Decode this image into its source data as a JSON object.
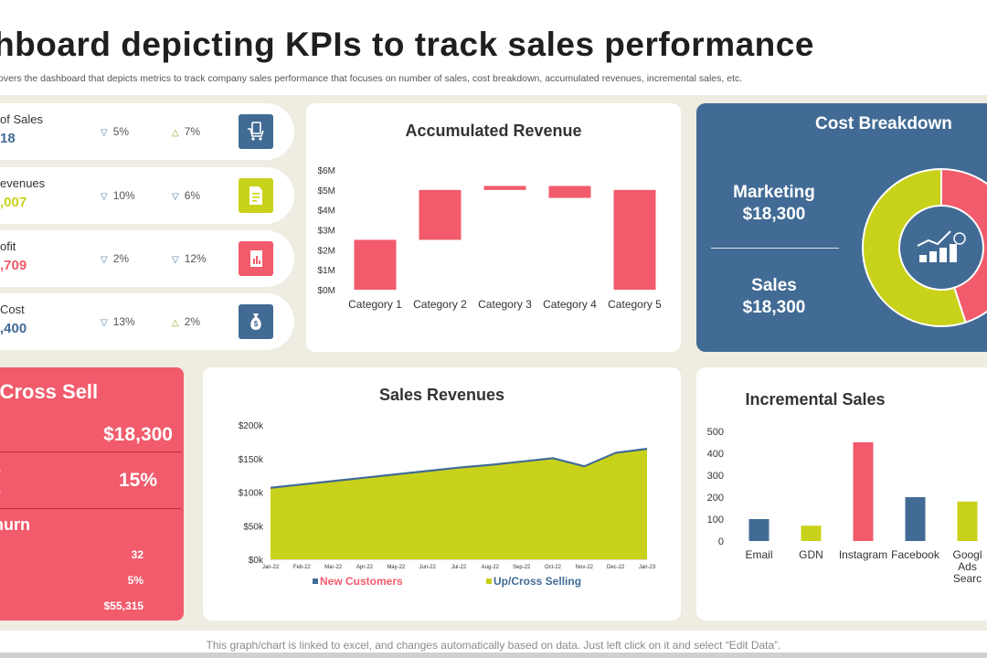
{
  "header": {
    "title": "shboard depicting KPIs to track sales performance",
    "subtitle": "overs the dashboard that depicts metrics to track company sales performance that focuses on number of sales, cost breakdown, accumulated revenues, incremental sales, etc."
  },
  "kpis": [
    {
      "label": "of Sales",
      "value": "18",
      "value_color": "#416b94",
      "change1": "5%",
      "change1_dir": "down",
      "change2": "7%",
      "change2_dir": "up",
      "icon": "cart-icon",
      "icon_color": "#416b94"
    },
    {
      "label": "evenues",
      "value": ",007",
      "value_color": "#c9d21a",
      "change1": "10%",
      "change1_dir": "down",
      "change2": "6%",
      "change2_dir": "down",
      "icon": "document-icon",
      "icon_color": "#c9d21a"
    },
    {
      "label": "ofit",
      "value": ",709",
      "value_color": "#f15b6c",
      "change1": "2%",
      "change1_dir": "down",
      "change2": "12%",
      "change2_dir": "down",
      "icon": "report-icon",
      "icon_color": "#f15b6c"
    },
    {
      "label": "Cost",
      "value": ",400",
      "value_color": "#416b94",
      "change1": "13%",
      "change1_dir": "down",
      "change2": "2%",
      "change2_dir": "up",
      "icon": "money-bag-icon",
      "icon_color": "#416b94"
    }
  ],
  "upcross": {
    "title": "p/Cross Sell",
    "value1": "$18,300",
    "label2_line1": "ge",
    "label2_line2": "ue",
    "pct": "15%",
    "label3": "Churn",
    "val_a": "32",
    "val_b": "5%",
    "val_c": "$55,315"
  },
  "accumulated_revenue": {
    "title": "Accumulated Revenue",
    "chart_data": {
      "type": "bar",
      "subtype": "waterfall",
      "categories": [
        "Category 1",
        "Category 2",
        "Category 3",
        "Category 4",
        "Category 5"
      ],
      "ranges": [
        [
          0,
          2.5
        ],
        [
          2.5,
          5.0
        ],
        [
          5.0,
          5.2
        ],
        [
          4.6,
          5.2
        ],
        [
          0,
          5.0
        ]
      ],
      "y_ticks": [
        "$0M",
        "$1M",
        "$2M",
        "$3M",
        "$4M",
        "$5M",
        "$6M"
      ],
      "ylim": [
        0,
        6
      ],
      "color": "#f15b6c"
    }
  },
  "cost_breakdown": {
    "title": "Cost Breakdown",
    "marketing_label": "Marketing",
    "marketing_value": "$18,300",
    "sales_label": "Sales",
    "sales_value": "$18,300",
    "chart_data": {
      "type": "pie",
      "donut": true,
      "slices": [
        {
          "value": 45,
          "color": "#f15b6c",
          "label": "45"
        },
        {
          "value": 55,
          "color": "#c9d21a",
          "label": ""
        }
      ],
      "center_icon": "growth-chart-icon"
    }
  },
  "sales_revenues": {
    "title": "Sales Revenues",
    "chart_data": {
      "type": "area",
      "x": [
        "Jan-22",
        "Feb-22",
        "Mar-22",
        "Apr-22",
        "May-22",
        "Jun-22",
        "Jul-22",
        "Aug-22",
        "Sep-22",
        "Oct-22",
        "Nov-22",
        "Dec-22",
        "Jan-23"
      ],
      "series": [
        {
          "name": "New Customers",
          "color": "#416b94",
          "values": [
            108,
            113,
            118,
            123,
            128,
            133,
            138,
            142,
            147,
            152,
            140,
            160,
            166
          ]
        },
        {
          "name": "Up/Cross Selling",
          "color": "#c9d21a",
          "values": [
            105,
            110,
            115,
            120,
            125,
            130,
            135,
            139,
            144,
            149,
            137,
            157,
            163
          ]
        }
      ],
      "y_ticks": [
        "$0k",
        "$50k",
        "$100k",
        "$150k",
        "$200k"
      ],
      "ylim": [
        0,
        200
      ]
    }
  },
  "incremental_sales": {
    "title": "Incremental Sales",
    "chart_data": {
      "type": "bar",
      "categories": [
        "Email",
        "GDN",
        "Instagram",
        "Facebook",
        "Google Ads Search"
      ],
      "category_lines": [
        [
          "Email"
        ],
        [
          "GDN"
        ],
        [
          "Instagram"
        ],
        [
          "Facebook"
        ],
        [
          "Googl",
          "Ads",
          "Searc"
        ]
      ],
      "values": [
        100,
        70,
        450,
        200,
        180
      ],
      "colors": [
        "#416b94",
        "#c9d21a",
        "#f15b6c",
        "#416b94",
        "#c9d21a"
      ],
      "y_ticks": [
        "0",
        "100",
        "200",
        "300",
        "400",
        "500"
      ],
      "ylim": [
        0,
        500
      ]
    }
  },
  "footer": {
    "text": "This graph/chart is linked to excel, and changes automatically based on data. Just left click on it and select “Edit Data”."
  }
}
